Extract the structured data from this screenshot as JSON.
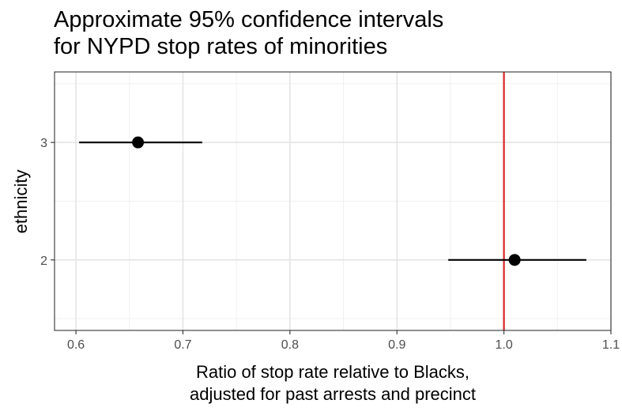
{
  "chart_data": {
    "type": "scatter",
    "title": [
      "Approximate 95% confidence intervals",
      "for NYPD stop rates of minorities"
    ],
    "xlabel": [
      "Ratio of stop rate relative to Blacks,",
      "adjusted for past arrests and precinct"
    ],
    "ylabel": "ethnicity",
    "xlim": [
      0.58,
      1.1
    ],
    "ylim": [
      1.4,
      3.6
    ],
    "x_ticks": [
      0.6,
      0.7,
      0.8,
      0.9,
      1.0,
      1.1
    ],
    "x_tick_labels": [
      "0.6",
      "0.7",
      "0.8",
      "0.9",
      "1.0",
      "1.1"
    ],
    "y_ticks": [
      2,
      3
    ],
    "y_tick_labels": [
      "2",
      "3"
    ],
    "grid": true,
    "points": [
      {
        "ethnicity": 3,
        "estimate": 0.658,
        "lower": 0.603,
        "upper": 0.718
      },
      {
        "ethnicity": 2,
        "estimate": 1.01,
        "lower": 0.948,
        "upper": 1.077
      }
    ],
    "reference_line": {
      "x": 1.0,
      "color": "#d62728"
    }
  }
}
